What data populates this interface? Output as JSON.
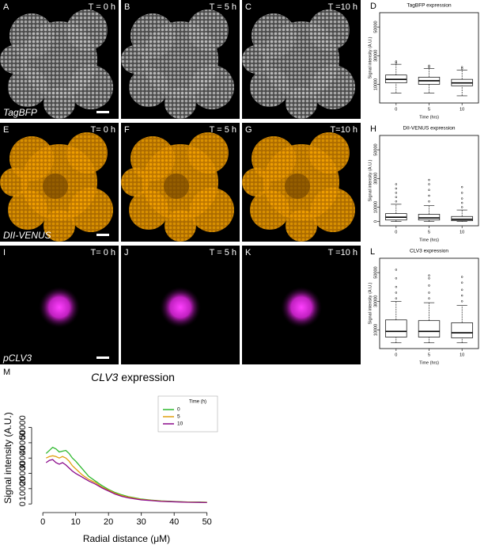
{
  "image_rows": [
    {
      "name": "TagBFP",
      "panels": [
        {
          "letter": "A",
          "time": "T = 0 h"
        },
        {
          "letter": "B",
          "time": "T = 5 h"
        },
        {
          "letter": "C",
          "time": "T =10 h"
        }
      ]
    },
    {
      "name": "DII-VENUS",
      "panels": [
        {
          "letter": "E",
          "time": "T= 0 h"
        },
        {
          "letter": "F",
          "time": "T = 5 h"
        },
        {
          "letter": "G",
          "time": "T=10 h"
        }
      ]
    },
    {
      "name": "pCLV3",
      "panels": [
        {
          "letter": "I",
          "time": "T= 0 h"
        },
        {
          "letter": "J",
          "time": "T = 5 h"
        },
        {
          "letter": "K",
          "time": "T =10 h"
        }
      ]
    }
  ],
  "chart_data": [
    {
      "type": "box",
      "letter": "D",
      "title": "TagBFP expression",
      "y_label": "Signal intensity (A.U.)",
      "x_label": "Time (hrs)",
      "categories": [
        "0",
        "5",
        "10"
      ],
      "ylim": [
        -3000,
        60000
      ],
      "yticks": [
        10000,
        30000,
        50000
      ],
      "series": [
        {
          "name": null,
          "color": "#000000",
          "whislo": [
            4000,
            4000,
            2000
          ],
          "q1": [
            11000,
            10000,
            9000
          ],
          "med": [
            13500,
            12500,
            11000
          ],
          "q3": [
            16500,
            15000,
            13500
          ],
          "whishi": [
            24000,
            21000,
            20000
          ],
          "outliers": [
            [
              25000,
              26000
            ],
            [
              22000,
              23000
            ],
            [
              21000,
              22000
            ]
          ]
        }
      ]
    },
    {
      "type": "box",
      "letter": "H",
      "title": "DII-VENUS expression",
      "y_label": "Signal intensity (A.U.)",
      "x_label": "Time (hrs)",
      "categories": [
        "0",
        "5",
        "10"
      ],
      "ylim": [
        -3000,
        60000
      ],
      "yticks": [
        0,
        10000,
        30000,
        50000
      ],
      "series": [
        {
          "name": null,
          "color": "#000000",
          "whislo": [
            0,
            0,
            0
          ],
          "q1": [
            1000,
            1000,
            500
          ],
          "med": [
            3000,
            2500,
            1500
          ],
          "q3": [
            5500,
            5000,
            3500
          ],
          "whishi": [
            12000,
            11000,
            8000
          ],
          "outliers": [
            [
              14000,
              17000,
              20000,
              23000,
              26000
            ],
            [
              14000,
              18000,
              22000,
              26000,
              29000
            ],
            [
              10000,
              13000,
              16000,
              20000,
              24000
            ]
          ]
        }
      ]
    },
    {
      "type": "box",
      "letter": "L",
      "title": "CLV3 expression",
      "y_label": "Signal intensity (A.U.)",
      "x_label": "Time (hrs)",
      "categories": [
        "0",
        "5",
        "10"
      ],
      "ylim": [
        -3000,
        60000
      ],
      "yticks": [
        10000,
        30000,
        50000
      ],
      "series": [
        {
          "name": null,
          "color": "#000000",
          "whislo": [
            1000,
            1000,
            1000
          ],
          "q1": [
            5000,
            5000,
            4500
          ],
          "med": [
            9000,
            9000,
            8000
          ],
          "q3": [
            17000,
            16500,
            15000
          ],
          "whishi": [
            30000,
            29000,
            27000
          ],
          "outliers": [
            [
              32000,
              36000,
              40000,
              46000,
              52000
            ],
            [
              32000,
              36000,
              41000,
              46000,
              48000
            ],
            [
              30000,
              34000,
              38000,
              43000,
              47000
            ]
          ]
        }
      ]
    },
    {
      "type": "line",
      "letter": "M",
      "title": [
        "CLV3",
        "expression"
      ],
      "x_label": "Radial distance (μM)",
      "y_label": "Signal intensity (A.U.)",
      "legend_title": "Time (h)",
      "legend": "top-right",
      "x": [
        1,
        2,
        3,
        4,
        5,
        6,
        7,
        8,
        9,
        10,
        12,
        14,
        16,
        18,
        20,
        22,
        24,
        26,
        28,
        30,
        33,
        36,
        40,
        44,
        48,
        50
      ],
      "xlim": [
        -1,
        52
      ],
      "xticks": [
        0,
        10,
        20,
        30,
        40,
        50
      ],
      "ylim": [
        -2000,
        56000
      ],
      "yticks": [
        0,
        10000,
        20000,
        30000,
        40000,
        50000
      ],
      "series": [
        {
          "name": "0",
          "color": "#2db82d",
          "values": [
            33000,
            35000,
            37000,
            36000,
            34000,
            34500,
            35000,
            33000,
            30000,
            28000,
            23000,
            18000,
            15000,
            12000,
            9500,
            7500,
            6000,
            4800,
            4000,
            3200,
            2500,
            2000,
            1600,
            1300,
            1200,
            1100
          ]
        },
        {
          "name": "5",
          "color": "#e0a010",
          "values": [
            30000,
            31000,
            31500,
            31000,
            30000,
            31000,
            30000,
            28000,
            25000,
            23000,
            19000,
            16000,
            14000,
            11000,
            9000,
            7000,
            5500,
            4500,
            3700,
            3000,
            2400,
            1900,
            1500,
            1200,
            1100,
            1000
          ]
        },
        {
          "name": "10",
          "color": "#8b0a8b",
          "values": [
            27000,
            28500,
            29000,
            27000,
            26000,
            27000,
            25500,
            23500,
            21500,
            20000,
            17500,
            15000,
            13000,
            10500,
            8500,
            6500,
            5000,
            4000,
            3300,
            2700,
            2200,
            1700,
            1400,
            1100,
            1000,
            900
          ]
        }
      ]
    }
  ]
}
